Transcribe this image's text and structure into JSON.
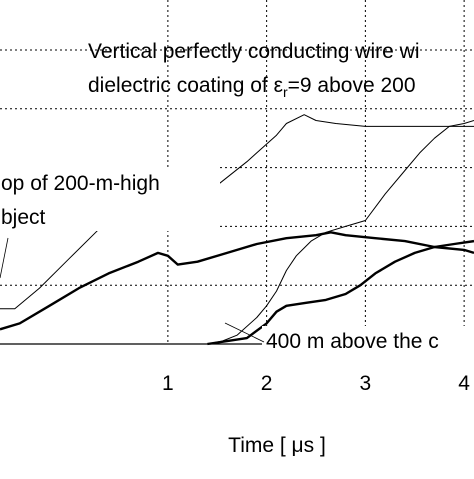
{
  "chart_data": {
    "type": "line",
    "title": "",
    "xlabel": "Time [ μs ]",
    "ylabel": "",
    "xlim": [
      -0.7,
      4.1
    ],
    "ylim": [
      0,
      1.17
    ],
    "x_ticks": [
      {
        "value": 1,
        "label": "1"
      },
      {
        "value": 2,
        "label": "2"
      },
      {
        "value": 3,
        "label": "3"
      },
      {
        "value": 4,
        "label": "4"
      }
    ],
    "y_grid": [
      0.2,
      0.4,
      0.6,
      0.8,
      1.0
    ],
    "grid": true,
    "annotations": {
      "config_line1": "Vertical perfectly conducting wire wi",
      "config_line2_prefix": "dielectric coating of ε",
      "config_line2_sub": "r",
      "config_line2_suffix": "=9 above 200",
      "top_label_line1": "op of 200-m-high",
      "top_label_line2": "bject",
      "bottom_label": "400 m above the c"
    },
    "series": [
      {
        "style": "thin",
        "points": [
          [
            -0.7,
            0.12
          ],
          [
            -0.55,
            0.12
          ],
          [
            -0.3,
            0.19
          ],
          [
            0,
            0.29
          ],
          [
            0.3,
            0.39
          ],
          [
            0.6,
            0.49
          ],
          [
            0.8,
            0.54
          ],
          [
            0.95,
            0.58
          ],
          [
            1.0,
            0.56
          ],
          [
            1.1,
            0.52
          ],
          [
            1.3,
            0.52
          ],
          [
            1.5,
            0.54
          ],
          [
            1.8,
            0.62
          ],
          [
            2.1,
            0.71
          ],
          [
            2.2,
            0.75
          ],
          [
            2.38,
            0.78
          ],
          [
            2.5,
            0.76
          ],
          [
            2.7,
            0.75
          ],
          [
            3.0,
            0.74
          ],
          [
            3.5,
            0.74
          ],
          [
            3.9,
            0.74
          ],
          [
            4.1,
            0.74
          ]
        ]
      },
      {
        "style": "thick",
        "points": [
          [
            -0.7,
            0.05
          ],
          [
            -0.5,
            0.07
          ],
          [
            -0.2,
            0.13
          ],
          [
            0.1,
            0.19
          ],
          [
            0.4,
            0.24
          ],
          [
            0.7,
            0.28
          ],
          [
            0.9,
            0.31
          ],
          [
            1.0,
            0.3
          ],
          [
            1.1,
            0.27
          ],
          [
            1.3,
            0.28
          ],
          [
            1.6,
            0.31
          ],
          [
            1.9,
            0.34
          ],
          [
            2.2,
            0.36
          ],
          [
            2.5,
            0.37
          ],
          [
            2.65,
            0.38
          ],
          [
            2.8,
            0.37
          ],
          [
            3.1,
            0.36
          ],
          [
            3.4,
            0.35
          ],
          [
            3.7,
            0.33
          ],
          [
            4.0,
            0.32
          ],
          [
            4.1,
            0.31
          ]
        ]
      },
      {
        "style": "thin",
        "points": [
          [
            1.4,
            0
          ],
          [
            1.55,
            0.01
          ],
          [
            1.7,
            0.03
          ],
          [
            1.9,
            0.09
          ],
          [
            2.0,
            0.13
          ],
          [
            2.1,
            0.18
          ],
          [
            2.2,
            0.25
          ],
          [
            2.3,
            0.3
          ],
          [
            2.45,
            0.35
          ],
          [
            2.6,
            0.38
          ],
          [
            2.8,
            0.4
          ],
          [
            3.0,
            0.42
          ],
          [
            3.2,
            0.51
          ],
          [
            3.4,
            0.59
          ],
          [
            3.55,
            0.65
          ],
          [
            3.7,
            0.7
          ],
          [
            3.85,
            0.74
          ],
          [
            4.0,
            0.75
          ],
          [
            4.1,
            0.76
          ]
        ]
      },
      {
        "style": "thick",
        "points": [
          [
            1.4,
            0
          ],
          [
            1.6,
            0.01
          ],
          [
            1.8,
            0.02
          ],
          [
            2.0,
            0.07
          ],
          [
            2.1,
            0.11
          ],
          [
            2.2,
            0.13
          ],
          [
            2.4,
            0.14
          ],
          [
            2.6,
            0.15
          ],
          [
            2.8,
            0.17
          ],
          [
            2.95,
            0.2
          ],
          [
            3.1,
            0.24
          ],
          [
            3.3,
            0.28
          ],
          [
            3.5,
            0.31
          ],
          [
            3.7,
            0.33
          ],
          [
            3.9,
            0.34
          ],
          [
            4.1,
            0.35
          ]
        ]
      }
    ]
  }
}
